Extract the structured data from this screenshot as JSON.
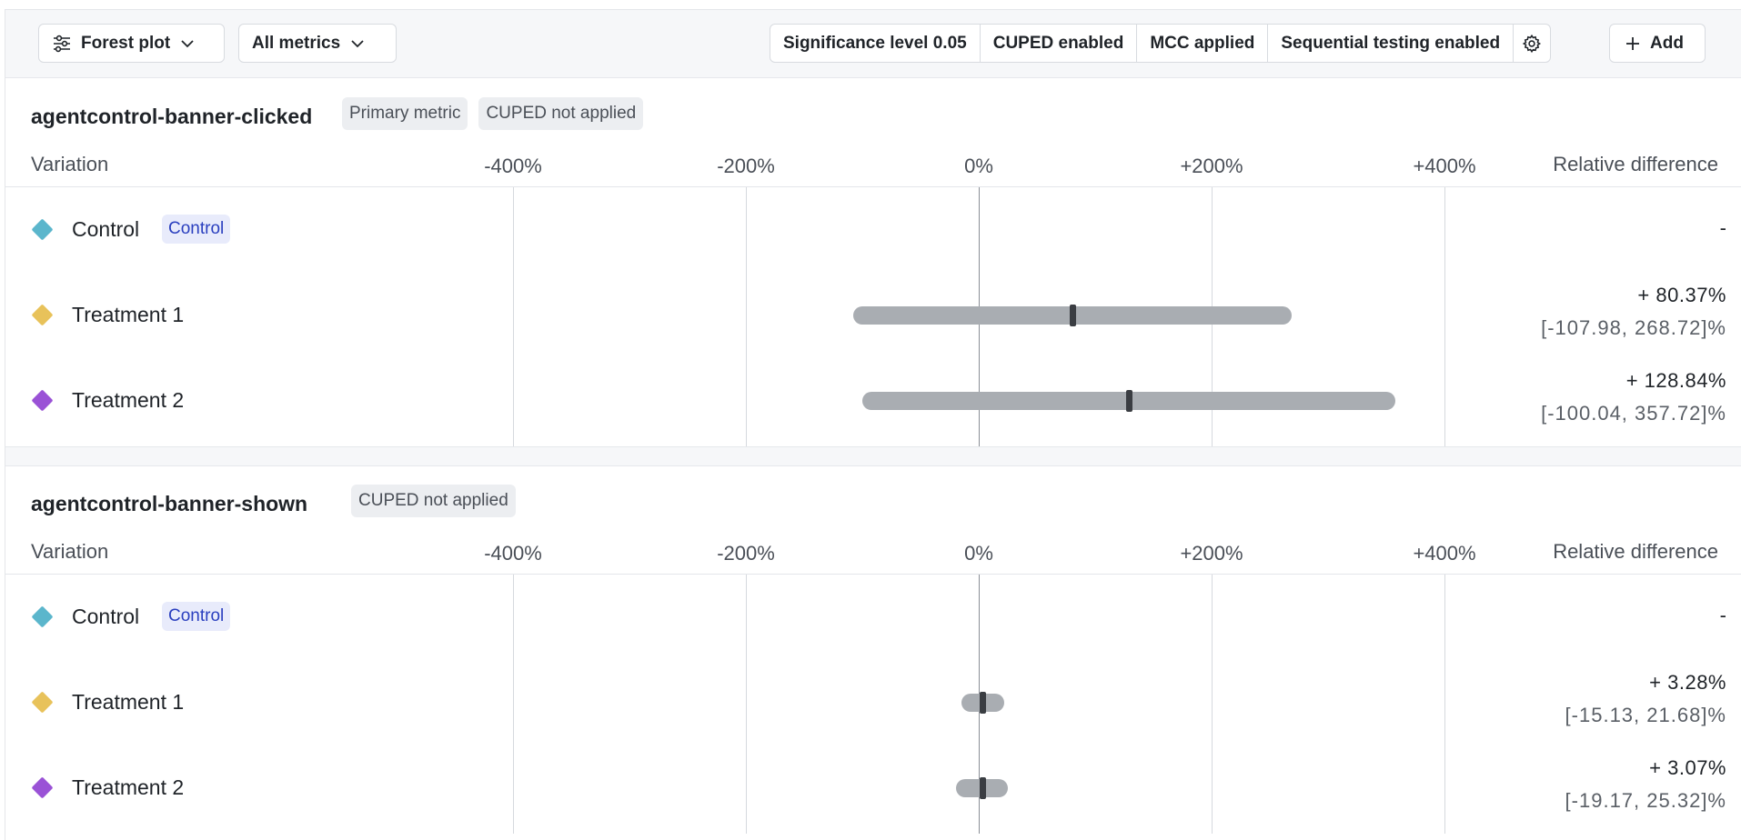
{
  "toolbar": {
    "view_label": "Forest plot",
    "metrics_label": "All metrics",
    "settings": [
      "Significance level 0.05",
      "CUPED enabled",
      "MCC applied",
      "Sequential testing enabled"
    ],
    "add_label": "Add"
  },
  "colors": {
    "control": "#5bb6cc",
    "treatment_1": "#e8c25a",
    "treatment_2": "#9a52d6"
  },
  "table_headers": {
    "variation": "Variation",
    "relative_difference": "Relative difference"
  },
  "axis_ticks": [
    "-400%",
    "-200%",
    "0%",
    "+200%",
    "+400%"
  ],
  "metrics": [
    {
      "name": "agentcontrol-banner-clicked",
      "badges": [
        "Primary metric",
        "CUPED not applied"
      ],
      "rows": [
        {
          "name": "Control",
          "tag": "Control",
          "color": "#5bb6cc",
          "relative": "-",
          "point": null,
          "ci_low": null,
          "ci_high": null,
          "ci_text": ""
        },
        {
          "name": "Treatment 1",
          "tag": "",
          "color": "#e8c25a",
          "relative": "+ 80.37%",
          "point": 80.37,
          "ci_low": -107.98,
          "ci_high": 268.72,
          "ci_text": "[-107.98, 268.72]%"
        },
        {
          "name": "Treatment 2",
          "tag": "",
          "color": "#9a52d6",
          "relative": "+ 128.84%",
          "point": 128.84,
          "ci_low": -100.04,
          "ci_high": 357.72,
          "ci_text": "[-100.04, 357.72]%"
        }
      ]
    },
    {
      "name": "agentcontrol-banner-shown",
      "badges": [
        "CUPED not applied"
      ],
      "rows": [
        {
          "name": "Control",
          "tag": "Control",
          "color": "#5bb6cc",
          "relative": "-",
          "point": null,
          "ci_low": null,
          "ci_high": null,
          "ci_text": ""
        },
        {
          "name": "Treatment 1",
          "tag": "",
          "color": "#e8c25a",
          "relative": "+ 3.28%",
          "point": 3.28,
          "ci_low": -15.13,
          "ci_high": 21.68,
          "ci_text": "[-15.13, 21.68]%"
        },
        {
          "name": "Treatment 2",
          "tag": "",
          "color": "#9a52d6",
          "relative": "+ 3.07%",
          "point": 3.07,
          "ci_low": -19.17,
          "ci_high": 25.32,
          "ci_text": "[-19.17, 25.32]%"
        }
      ]
    }
  ],
  "chart_data": [
    {
      "type": "scatter",
      "title": "agentcontrol-banner-clicked",
      "xlabel": "",
      "ylabel": "",
      "xlim": [
        -400,
        400
      ],
      "x_ticks": [
        "-400%",
        "-200%",
        "0%",
        "+200%",
        "+400%"
      ],
      "categories": [
        "Control",
        "Treatment 1",
        "Treatment 2"
      ],
      "point": [
        null,
        80.37,
        128.84
      ],
      "ci_low": [
        null,
        -107.98,
        -100.04
      ],
      "ci_high": [
        null,
        268.72,
        357.72
      ],
      "grid": true
    },
    {
      "type": "scatter",
      "title": "agentcontrol-banner-shown",
      "xlabel": "",
      "ylabel": "",
      "xlim": [
        -400,
        400
      ],
      "x_ticks": [
        "-400%",
        "-200%",
        "0%",
        "+200%",
        "+400%"
      ],
      "categories": [
        "Control",
        "Treatment 1",
        "Treatment 2"
      ],
      "point": [
        null,
        3.28,
        3.07
      ],
      "ci_low": [
        null,
        -15.13,
        -19.17
      ],
      "ci_high": [
        null,
        21.68,
        25.32
      ],
      "grid": true
    }
  ]
}
